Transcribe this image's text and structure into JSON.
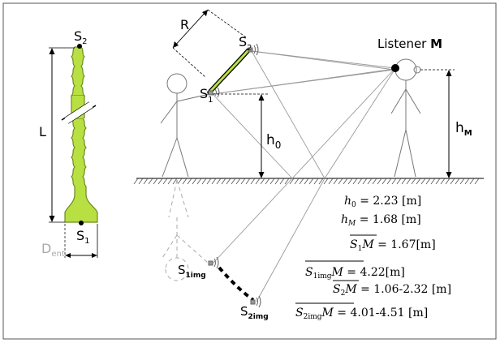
{
  "tube": {
    "top_source": "S",
    "top_source_sub": "2",
    "bottom_source": "S",
    "bottom_source_sub": "1",
    "length_label": "L",
    "diameter_label": "D",
    "diameter_sub": "ent",
    "colors": {
      "tube": "#b8e043",
      "tube_outline": "#6c8a1d"
    }
  },
  "scene": {
    "radius_label": "R",
    "source1": "S",
    "source1_sub": "1",
    "source2": "S",
    "source2_sub": "2",
    "source1_image": "S",
    "source1_image_sub": "1img",
    "source2_image": "S",
    "source2_image_sub": "2img",
    "listener_label": "Listener ",
    "listener_bold": "M",
    "h0_label": "h",
    "h0_sub": "0",
    "hm_label": "h",
    "hm_sub": "M"
  },
  "equations": {
    "h0": {
      "lhs": "h",
      "lhs_sub": "0",
      "rhs": " = 2.23 [m]"
    },
    "hM": {
      "lhs": "h",
      "lhs_sub": "M",
      "rhs": " = 1.68 [m]"
    },
    "s1m": {
      "lhs": "S",
      "lhs_sub": "1",
      "lhs_end": "M",
      "rhs": " = 1.67[m]"
    },
    "s1imgm": {
      "lhs": "S",
      "lhs_sub": "1img",
      "lhs_end": "M",
      "rhs": " = 4.22[m]"
    },
    "s2m": {
      "lhs": "S",
      "lhs_sub": "2",
      "lhs_end": "M",
      "rhs": " = 1.06-2.32 [m]"
    },
    "s2imgm": {
      "lhs": "S",
      "lhs_sub": "2img",
      "lhs_end": "M",
      "rhs": " = 4.01-4.51 [m]"
    }
  }
}
